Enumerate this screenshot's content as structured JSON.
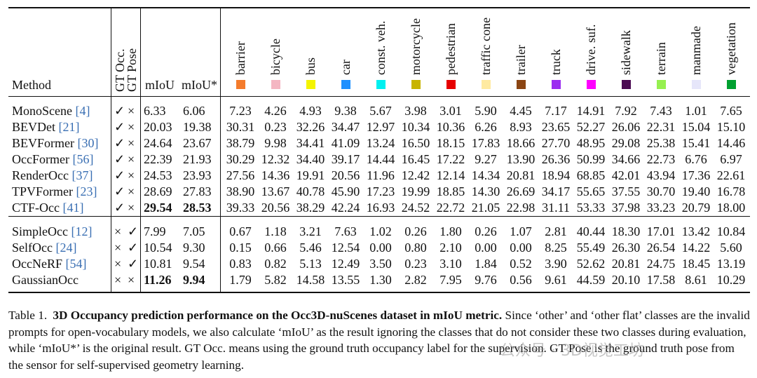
{
  "table": {
    "header": {
      "method": "Method",
      "gt_occ": "GT Occ.",
      "gt_pose": "GT Pose",
      "miou": "mIoU",
      "miou_star": "mIoU*"
    },
    "classes": [
      {
        "name": "barrier",
        "color": "#f47b2c"
      },
      {
        "name": "bicycle",
        "color": "#f4b6c2"
      },
      {
        "name": "bus",
        "color": "#f4f400"
      },
      {
        "name": "car",
        "color": "#1e90ff"
      },
      {
        "name": "const. veh.",
        "color": "#00f0f0"
      },
      {
        "name": "motorcycle",
        "color": "#c8b400"
      },
      {
        "name": "pedestrian",
        "color": "#e60000"
      },
      {
        "name": "traffic cone",
        "color": "#ffeaa0"
      },
      {
        "name": "trailer",
        "color": "#8b4513"
      },
      {
        "name": "truck",
        "color": "#9b2cf0"
      },
      {
        "name": "drive. suf.",
        "color": "#ff00ff"
      },
      {
        "name": "sidewalk",
        "color": "#4b0a52"
      },
      {
        "name": "terrain",
        "color": "#96f050"
      },
      {
        "name": "manmade",
        "color": "#e6e6fa"
      },
      {
        "name": "vegetation",
        "color": "#00a030"
      }
    ],
    "rows": [
      {
        "name": "MonoScene",
        "cite": "[4]",
        "gt_occ": "✓",
        "gt_pose": "×",
        "miou": "6.33",
        "miou_star": "6.06",
        "vals": [
          "7.23",
          "4.26",
          "4.93",
          "9.38",
          "5.67",
          "3.98",
          "3.01",
          "5.90",
          "4.45",
          "7.17",
          "14.91",
          "7.92",
          "7.43",
          "1.01",
          "7.65"
        ]
      },
      {
        "name": "BEVDet",
        "cite": "[21]",
        "gt_occ": "✓",
        "gt_pose": "×",
        "miou": "20.03",
        "miou_star": "19.38",
        "vals": [
          "30.31",
          "0.23",
          "32.26",
          "34.47",
          "12.97",
          "10.34",
          "10.36",
          "6.26",
          "8.93",
          "23.65",
          "52.27",
          "26.06",
          "22.31",
          "15.04",
          "15.10"
        ]
      },
      {
        "name": "BEVFormer",
        "cite": "[30]",
        "gt_occ": "✓",
        "gt_pose": "×",
        "miou": "24.64",
        "miou_star": "23.67",
        "vals": [
          "38.79",
          "9.98",
          "34.41",
          "41.09",
          "13.24",
          "16.50",
          "18.15",
          "17.83",
          "18.66",
          "27.70",
          "48.95",
          "29.08",
          "25.38",
          "15.41",
          "14.46"
        ]
      },
      {
        "name": "OccFormer",
        "cite": "[56]",
        "gt_occ": "✓",
        "gt_pose": "×",
        "miou": "22.39",
        "miou_star": "21.93",
        "vals": [
          "30.29",
          "12.32",
          "34.40",
          "39.17",
          "14.44",
          "16.45",
          "17.22",
          "9.27",
          "13.90",
          "26.36",
          "50.99",
          "34.66",
          "22.73",
          "6.76",
          "6.97"
        ]
      },
      {
        "name": "RenderOcc",
        "cite": "[37]",
        "gt_occ": "✓",
        "gt_pose": "×",
        "miou": "24.53",
        "miou_star": "23.93",
        "vals": [
          "27.56",
          "14.36",
          "19.91",
          "20.56",
          "11.96",
          "12.42",
          "12.14",
          "14.34",
          "20.81",
          "18.94",
          "68.85",
          "42.01",
          "43.94",
          "17.36",
          "22.61"
        ]
      },
      {
        "name": "TPVFormer",
        "cite": "[23]",
        "gt_occ": "✓",
        "gt_pose": "×",
        "miou": "28.69",
        "miou_star": "27.83",
        "vals": [
          "38.90",
          "13.67",
          "40.78",
          "45.90",
          "17.23",
          "19.99",
          "18.85",
          "14.30",
          "26.69",
          "34.17",
          "55.65",
          "37.55",
          "30.70",
          "19.40",
          "16.78"
        ]
      },
      {
        "name": "CTF-Occ",
        "cite": "[41]",
        "gt_occ": "✓",
        "gt_pose": "×",
        "miou": "29.54",
        "miou_star": "28.53",
        "bold": true,
        "vals": [
          "39.33",
          "20.56",
          "38.29",
          "42.24",
          "16.93",
          "24.52",
          "22.72",
          "21.05",
          "22.98",
          "31.11",
          "53.33",
          "37.98",
          "33.23",
          "20.79",
          "18.00"
        ]
      },
      {
        "name": "SimpleOcc",
        "cite": "[12]",
        "gt_occ": "×",
        "gt_pose": "✓",
        "miou": "7.99",
        "miou_star": "7.05",
        "vals": [
          "0.67",
          "1.18",
          "3.21",
          "7.63",
          "1.02",
          "0.26",
          "1.80",
          "0.26",
          "1.07",
          "2.81",
          "40.44",
          "18.30",
          "17.01",
          "13.42",
          "10.84"
        ]
      },
      {
        "name": "SelfOcc",
        "cite": "[24]",
        "gt_occ": "×",
        "gt_pose": "✓",
        "miou": "10.54",
        "miou_star": "9.30",
        "vals": [
          "0.15",
          "0.66",
          "5.46",
          "12.54",
          "0.00",
          "0.80",
          "2.10",
          "0.00",
          "0.00",
          "8.25",
          "55.49",
          "26.30",
          "26.54",
          "14.22",
          "5.60"
        ]
      },
      {
        "name": "OccNeRF",
        "cite": "[54]",
        "gt_occ": "×",
        "gt_pose": "✓",
        "miou": "10.81",
        "miou_star": "9.54",
        "vals": [
          "0.83",
          "0.82",
          "5.13",
          "12.49",
          "3.50",
          "0.23",
          "3.10",
          "1.84",
          "0.52",
          "3.90",
          "52.62",
          "20.81",
          "24.75",
          "18.45",
          "13.19"
        ]
      },
      {
        "name": "GaussianOcc",
        "cite": "",
        "gt_occ": "×",
        "gt_pose": "×",
        "miou": "11.26",
        "miou_star": "9.94",
        "bold": true,
        "vals": [
          "1.79",
          "5.82",
          "14.58",
          "13.55",
          "1.30",
          "2.82",
          "7.95",
          "9.76",
          "0.56",
          "9.61",
          "44.59",
          "20.10",
          "17.58",
          "8.61",
          "10.29"
        ]
      }
    ]
  },
  "caption": {
    "label": "Table 1.",
    "bold": "3D Occupancy prediction performance on the Occ3D-nuScenes dataset in mIoU metric.",
    "body": "Since ‘other’ and ‘other flat’ classes are the invalid prompts for open-vocabulary models, we also calculate ‘mIoU’ as the result ignoring the classes that do not consider these two classes during evaluation, while ‘mIoU*’ is the original result. GT Occ. means using the ground truth occupancy label for the supervision. GT Pose is the ground truth pose from the sensor for self-supervised geometry learning."
  },
  "watermark": "公众号 · 3D视觉工坊"
}
